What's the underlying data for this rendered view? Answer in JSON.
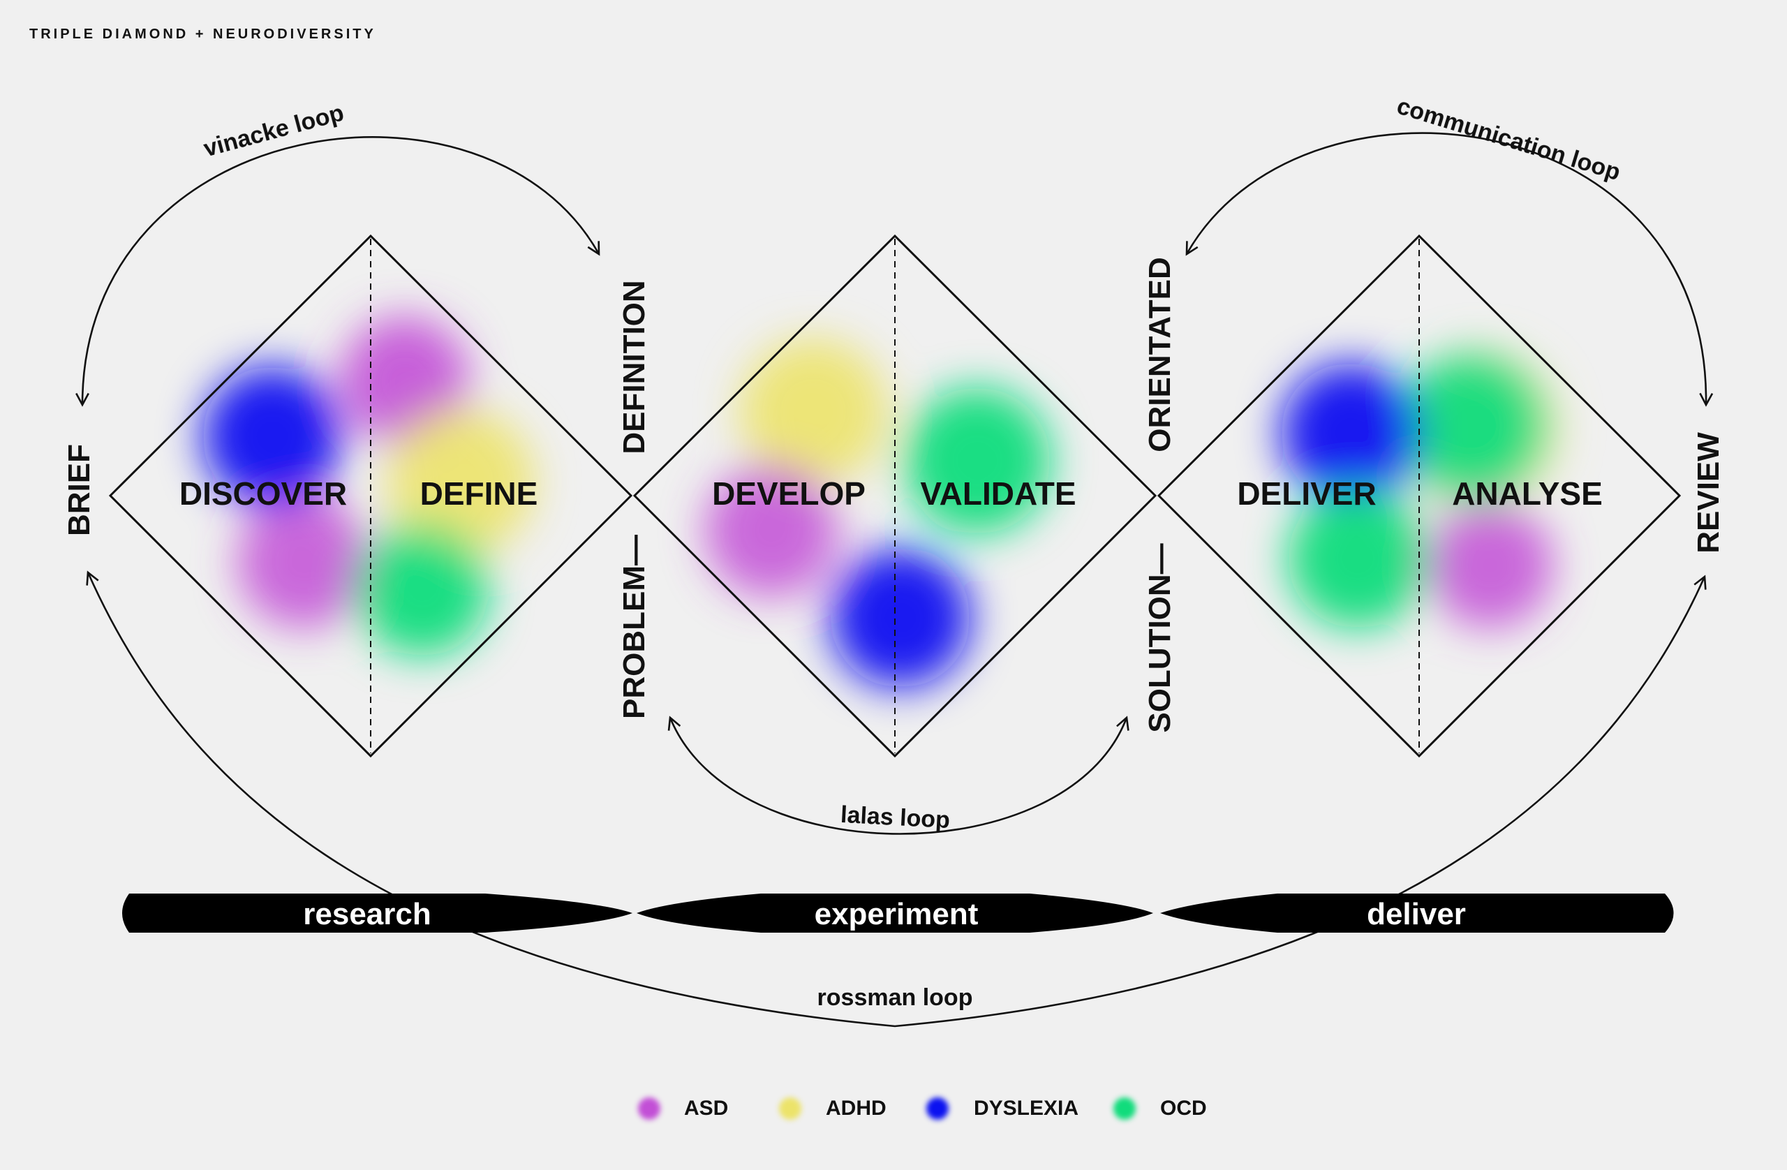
{
  "header": {
    "title": "TRIPLE DIAMOND + NEURODIVERSITY"
  },
  "colors": {
    "asd": "#c24fd6",
    "adhd": "#ece36a",
    "dyslexia": "#0b12f0",
    "ocd": "#11dc7c",
    "ink": "#111111",
    "background": "#f0f0f0"
  },
  "diamonds": [
    {
      "left_label": "DISCOVER",
      "right_label": "DEFINE"
    },
    {
      "left_label": "DEVELOP",
      "right_label": "VALIDATE"
    },
    {
      "left_label": "DELIVER",
      "right_label": "ANALYSE"
    }
  ],
  "side_labels": {
    "brief": "BRIEF",
    "definition": "DEFINITION",
    "problem": "PROBLEM—",
    "orientated": "ORIENTATED",
    "solution": "SOLUTION—",
    "review": "REVIEW"
  },
  "loops": {
    "vinacke": "vinacke loop",
    "communication": "communication loop",
    "lalas": "lalas loop",
    "rossman": "rossman loop"
  },
  "stages": [
    "research",
    "experiment",
    "deliver"
  ],
  "legend": [
    {
      "label": "ASD",
      "color_key": "asd"
    },
    {
      "label": "ADHD",
      "color_key": "adhd"
    },
    {
      "label": "DYSLEXIA",
      "color_key": "dyslexia"
    },
    {
      "label": "OCD",
      "color_key": "ocd"
    }
  ]
}
